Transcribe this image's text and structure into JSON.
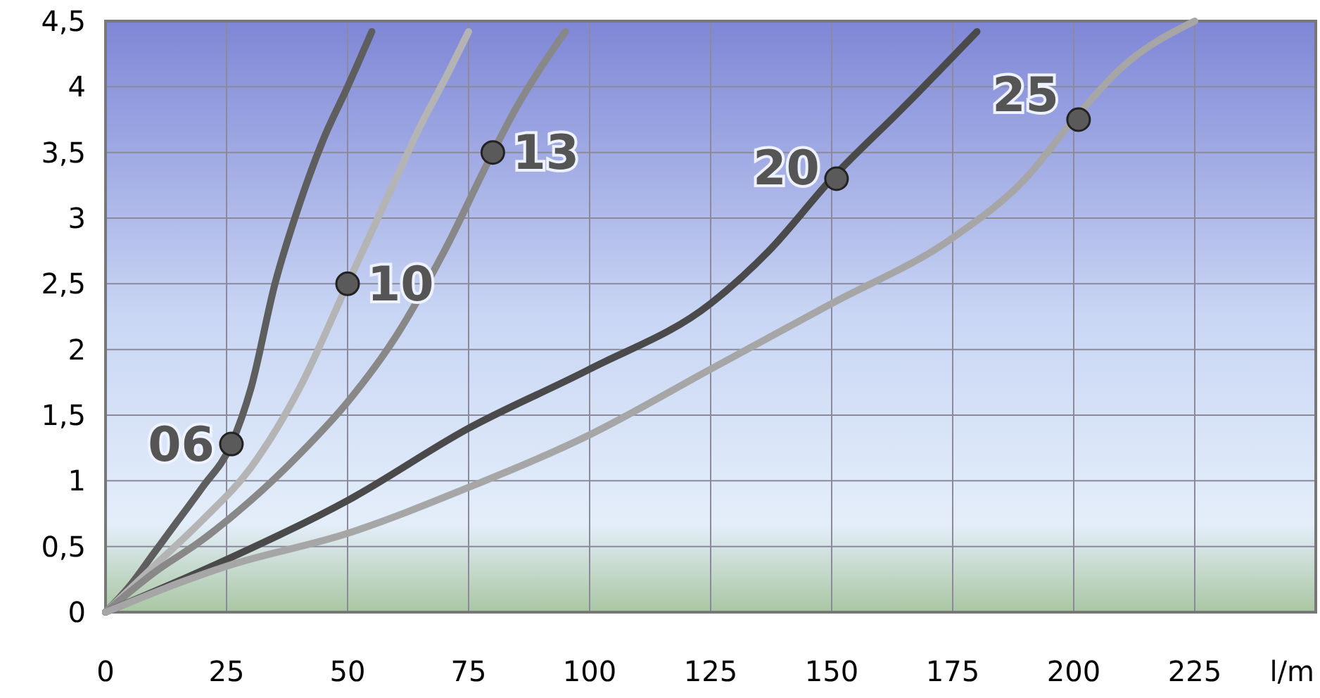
{
  "chart_data": {
    "type": "line",
    "xlabel": "l/m",
    "xlim": [
      0,
      250
    ],
    "ylim": [
      0,
      4.5
    ],
    "xticks": [
      0,
      25,
      50,
      75,
      100,
      125,
      150,
      175,
      200,
      225
    ],
    "yticks": [
      {
        "value": 0,
        "label": "0"
      },
      {
        "value": 0.5,
        "label": "0,5"
      },
      {
        "value": 1,
        "label": "1"
      },
      {
        "value": 1.5,
        "label": "1,5"
      },
      {
        "value": 2,
        "label": "2"
      },
      {
        "value": 2.5,
        "label": "2,5"
      },
      {
        "value": 3,
        "label": "3"
      },
      {
        "value": 3.5,
        "label": "3,5"
      },
      {
        "value": 4,
        "label": "4"
      },
      {
        "value": 4.5,
        "label": "4,5"
      }
    ],
    "grid": true,
    "line_style": "solid",
    "series": [
      {
        "name": "06",
        "color": "#5e5e5e",
        "x": [
          0,
          5,
          10,
          15,
          20,
          26,
          30,
          35,
          40,
          45,
          50,
          55
        ],
        "values": [
          0,
          0.2,
          0.45,
          0.7,
          0.95,
          1.28,
          1.7,
          2.5,
          3.1,
          3.6,
          4.0,
          4.42
        ]
      },
      {
        "name": "10",
        "color": "#b4b4b4",
        "x": [
          0,
          10,
          20,
          30,
          40,
          50,
          55,
          60,
          65,
          70,
          75
        ],
        "values": [
          0,
          0.35,
          0.7,
          1.1,
          1.7,
          2.5,
          2.9,
          3.3,
          3.7,
          4.05,
          4.42
        ]
      },
      {
        "name": "13",
        "color": "#888888",
        "x": [
          0,
          10,
          20,
          30,
          40,
          50,
          60,
          70,
          80,
          85,
          90,
          95
        ],
        "values": [
          0,
          0.3,
          0.55,
          0.85,
          1.2,
          1.6,
          2.1,
          2.75,
          3.5,
          3.85,
          4.15,
          4.42
        ]
      },
      {
        "name": "20",
        "color": "#4a4a4a",
        "x": [
          0,
          25,
          50,
          75,
          100,
          125,
          137,
          150,
          165,
          180
        ],
        "values": [
          0,
          0.4,
          0.85,
          1.4,
          1.85,
          2.35,
          2.75,
          3.3,
          3.85,
          4.42
        ]
      },
      {
        "name": "25",
        "color": "#a6a6a6",
        "x": [
          0,
          25,
          50,
          75,
          100,
          125,
          150,
          175,
          190,
          200,
          210,
          225
        ],
        "values": [
          0,
          0.35,
          0.6,
          0.95,
          1.35,
          1.85,
          2.35,
          2.85,
          3.3,
          3.75,
          4.15,
          4.5
        ]
      },
      {
        "type": "scatter",
        "marker": "circle",
        "color": "#5a5a5a",
        "x": [
          26,
          50,
          80,
          151,
          201
        ],
        "values": [
          1.28,
          2.5,
          3.5,
          3.3,
          3.75
        ]
      }
    ]
  }
}
